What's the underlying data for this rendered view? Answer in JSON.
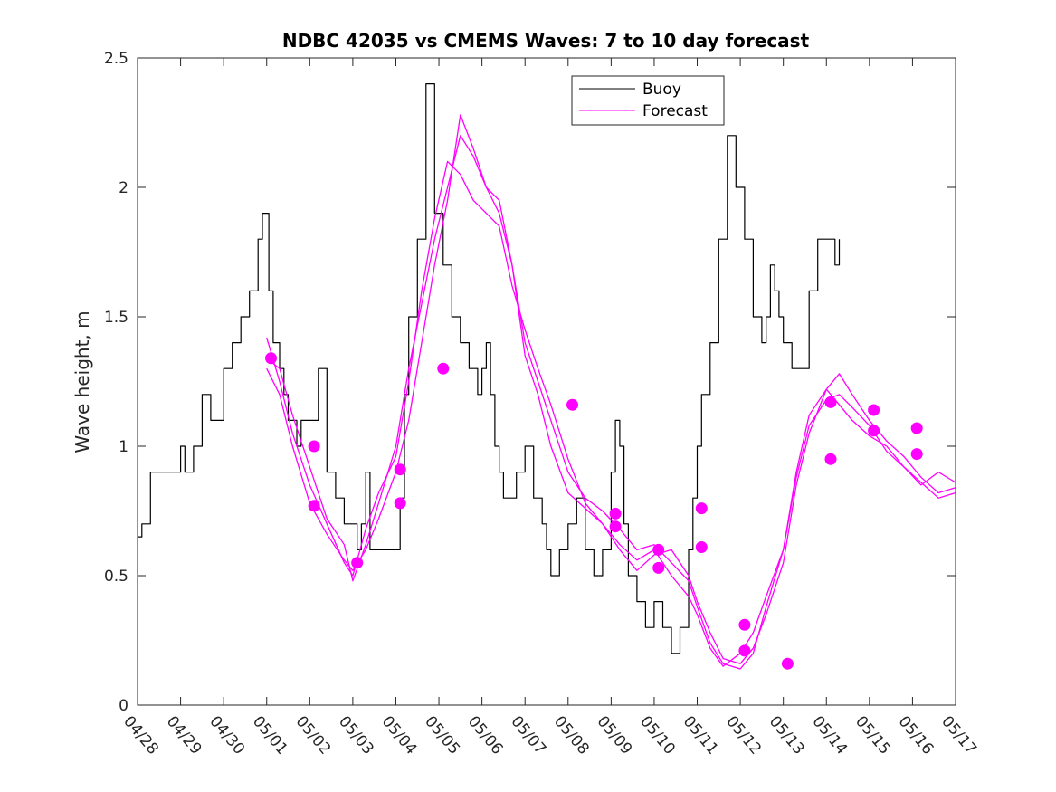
{
  "chart_data": {
    "type": "line",
    "title": "NDBC 42035 vs CMEMS Waves: 7 to 10 day forecast",
    "xlabel": "",
    "ylabel": "Wave height, m",
    "xlim": [
      "04/28",
      "05/17"
    ],
    "ylim": [
      0,
      2.5
    ],
    "y_ticks": [
      "0",
      "0.5",
      "1",
      "1.5",
      "2",
      "2.5"
    ],
    "x_ticks": [
      "04/28",
      "04/29",
      "04/30",
      "05/01",
      "05/02",
      "05/03",
      "05/04",
      "05/05",
      "05/06",
      "05/07",
      "05/08",
      "05/09",
      "05/10",
      "05/11",
      "05/12",
      "05/13",
      "05/14",
      "05/15",
      "05/16",
      "05/17"
    ],
    "grid": false,
    "legend": {
      "position": "top-center",
      "entries": [
        "Buoy",
        "Forecast"
      ]
    },
    "colors": {
      "buoy": "#000000",
      "forecast": "#ff00ff"
    },
    "series": [
      {
        "name": "Buoy",
        "x": [
          0,
          0.1,
          0.2,
          0.3,
          0.5,
          0.8,
          1.0,
          1.1,
          1.3,
          1.5,
          1.7,
          1.9,
          2.0,
          2.2,
          2.4,
          2.6,
          2.8,
          2.9,
          3.05,
          3.15,
          3.3,
          3.4,
          3.5,
          3.7,
          3.8,
          4.0,
          4.2,
          4.4,
          4.6,
          4.8,
          5.0,
          5.1,
          5.2,
          5.3,
          5.4,
          5.5,
          5.6,
          5.8,
          6.0,
          6.1,
          6.2,
          6.3,
          6.5,
          6.7,
          6.9,
          7.1,
          7.3,
          7.5,
          7.7,
          7.9,
          8.0,
          8.1,
          8.2,
          8.3,
          8.4,
          8.5,
          8.6,
          8.7,
          8.8,
          9.0,
          9.2,
          9.4,
          9.5,
          9.6,
          9.8,
          10.0,
          10.2,
          10.4,
          10.6,
          10.8,
          11.0,
          11.1,
          11.2,
          11.3,
          11.4,
          11.6,
          11.8,
          12.0,
          12.2,
          12.4,
          12.6,
          12.8,
          12.9,
          13.0,
          13.1,
          13.3,
          13.5,
          13.7,
          13.9,
          14.1,
          14.3,
          14.5,
          14.6,
          14.7,
          14.8,
          14.9,
          15.0,
          15.2,
          15.4,
          15.6,
          15.8,
          16.0,
          16.2,
          16.3
        ],
        "values": [
          0.65,
          0.7,
          0.7,
          0.9,
          0.9,
          0.9,
          1.0,
          0.9,
          1.0,
          1.2,
          1.1,
          1.1,
          1.3,
          1.4,
          1.5,
          1.6,
          1.8,
          1.9,
          1.6,
          1.4,
          1.3,
          1.2,
          1.1,
          1.0,
          1.1,
          1.1,
          1.3,
          0.9,
          0.8,
          0.7,
          0.7,
          0.6,
          0.7,
          0.9,
          0.6,
          0.6,
          0.6,
          0.6,
          0.6,
          0.8,
          1.2,
          1.5,
          1.8,
          2.4,
          1.9,
          1.7,
          1.5,
          1.4,
          1.3,
          1.2,
          1.3,
          1.4,
          1.2,
          1.0,
          0.9,
          0.8,
          0.8,
          0.8,
          0.9,
          1.0,
          0.8,
          0.7,
          0.6,
          0.5,
          0.6,
          0.7,
          0.8,
          0.6,
          0.5,
          0.6,
          0.9,
          1.1,
          1.0,
          0.7,
          0.5,
          0.4,
          0.3,
          0.4,
          0.3,
          0.2,
          0.3,
          0.6,
          0.8,
          1.0,
          1.2,
          1.4,
          1.8,
          2.2,
          2.0,
          1.8,
          1.5,
          1.4,
          1.5,
          1.7,
          1.6,
          1.5,
          1.4,
          1.3,
          1.3,
          1.6,
          1.8,
          1.8,
          1.7,
          1.8
        ]
      },
      {
        "name": "Forecast",
        "x": [
          3.0,
          3.3,
          3.6,
          4.0,
          4.4,
          4.8,
          5.0,
          5.3,
          5.6,
          6.0,
          6.3,
          6.6,
          6.9,
          7.2,
          7.5,
          7.8,
          8.1,
          8.4,
          8.7,
          9.0,
          9.3,
          9.6,
          10.0,
          10.4,
          10.8,
          11.2,
          11.6,
          12.0,
          12.4,
          12.8,
          13.0,
          13.3,
          13.6,
          14.0,
          14.3,
          14.6,
          15.0,
          15.3,
          15.6,
          16.0,
          16.3,
          16.6,
          17.0,
          17.4,
          17.8,
          18.2,
          18.6,
          19.0
        ],
        "values": [
          1.34,
          1.3,
          1.12,
          0.92,
          0.72,
          0.62,
          0.48,
          0.62,
          0.78,
          1.0,
          1.3,
          1.55,
          1.8,
          2.0,
          2.2,
          2.12,
          2.0,
          1.9,
          1.7,
          1.35,
          1.2,
          1.0,
          0.82,
          0.76,
          0.7,
          0.62,
          0.56,
          0.6,
          0.5,
          0.42,
          0.35,
          0.22,
          0.15,
          0.2,
          0.28,
          0.42,
          0.6,
          0.9,
          1.12,
          1.22,
          1.16,
          1.1,
          1.04,
          1.0,
          0.92,
          0.85,
          0.9,
          0.86
        ]
      },
      {
        "name": "Forecast",
        "x": [
          3.0,
          3.3,
          3.6,
          4.0,
          4.4,
          4.8,
          5.0,
          5.3,
          5.6,
          6.0,
          6.3,
          6.6,
          6.9,
          7.2,
          7.5,
          7.8,
          8.1,
          8.4,
          8.7,
          9.0,
          9.3,
          9.6,
          10.0,
          10.4,
          10.8,
          11.2,
          11.6,
          12.0,
          12.4,
          12.8,
          13.0,
          13.3,
          13.6,
          14.0,
          14.3,
          14.6,
          15.0,
          15.3,
          15.6,
          16.0,
          16.3,
          16.6,
          17.0,
          17.4,
          17.8,
          18.2,
          18.6,
          19.0
        ],
        "values": [
          1.42,
          1.25,
          1.05,
          0.85,
          0.7,
          0.55,
          0.5,
          0.68,
          0.82,
          0.96,
          1.25,
          1.6,
          1.88,
          2.1,
          2.05,
          1.95,
          1.9,
          1.85,
          1.62,
          1.45,
          1.3,
          1.16,
          0.95,
          0.78,
          0.7,
          0.6,
          0.52,
          0.58,
          0.6,
          0.5,
          0.4,
          0.28,
          0.18,
          0.16,
          0.22,
          0.35,
          0.55,
          0.85,
          1.05,
          1.22,
          1.28,
          1.2,
          1.1,
          1.02,
          0.96,
          0.88,
          0.82,
          0.84
        ]
      },
      {
        "name": "Forecast",
        "x": [
          3.0,
          3.3,
          3.6,
          4.0,
          4.4,
          4.8,
          5.0,
          5.3,
          5.6,
          6.0,
          6.3,
          6.6,
          6.9,
          7.2,
          7.5,
          7.8,
          8.1,
          8.4,
          8.7,
          9.0,
          9.3,
          9.6,
          10.0,
          10.4,
          10.8,
          11.2,
          11.6,
          12.0,
          12.4,
          12.8,
          13.0,
          13.3,
          13.6,
          14.0,
          14.3,
          14.6,
          15.0,
          15.3,
          15.6,
          16.0,
          16.3,
          16.6,
          17.0,
          17.4,
          17.8,
          18.2,
          18.6,
          19.0
        ],
        "values": [
          1.3,
          1.2,
          1.0,
          0.78,
          0.66,
          0.56,
          0.52,
          0.6,
          0.72,
          0.9,
          1.1,
          1.4,
          1.7,
          1.95,
          2.28,
          2.15,
          2.0,
          1.95,
          1.7,
          1.4,
          1.25,
          1.1,
          0.9,
          0.8,
          0.75,
          0.68,
          0.6,
          0.62,
          0.55,
          0.48,
          0.38,
          0.24,
          0.16,
          0.14,
          0.2,
          0.38,
          0.6,
          0.88,
          1.08,
          1.18,
          1.2,
          1.15,
          1.08,
          0.98,
          0.92,
          0.86,
          0.8,
          0.82
        ]
      }
    ],
    "markers": {
      "x": [
        3.1,
        4.1,
        4.1,
        5.1,
        6.1,
        6.1,
        7.1,
        10.1,
        11.1,
        11.1,
        12.1,
        12.1,
        13.1,
        13.1,
        14.1,
        14.1,
        15.1,
        16.1,
        16.1,
        17.1,
        17.1,
        18.1,
        18.1
      ],
      "values": [
        1.34,
        1.0,
        0.77,
        0.55,
        0.91,
        0.78,
        1.3,
        1.16,
        0.74,
        0.69,
        0.6,
        0.53,
        0.76,
        0.61,
        0.31,
        0.21,
        0.16,
        1.17,
        0.95,
        1.14,
        1.06,
        1.07,
        0.97
      ]
    }
  }
}
